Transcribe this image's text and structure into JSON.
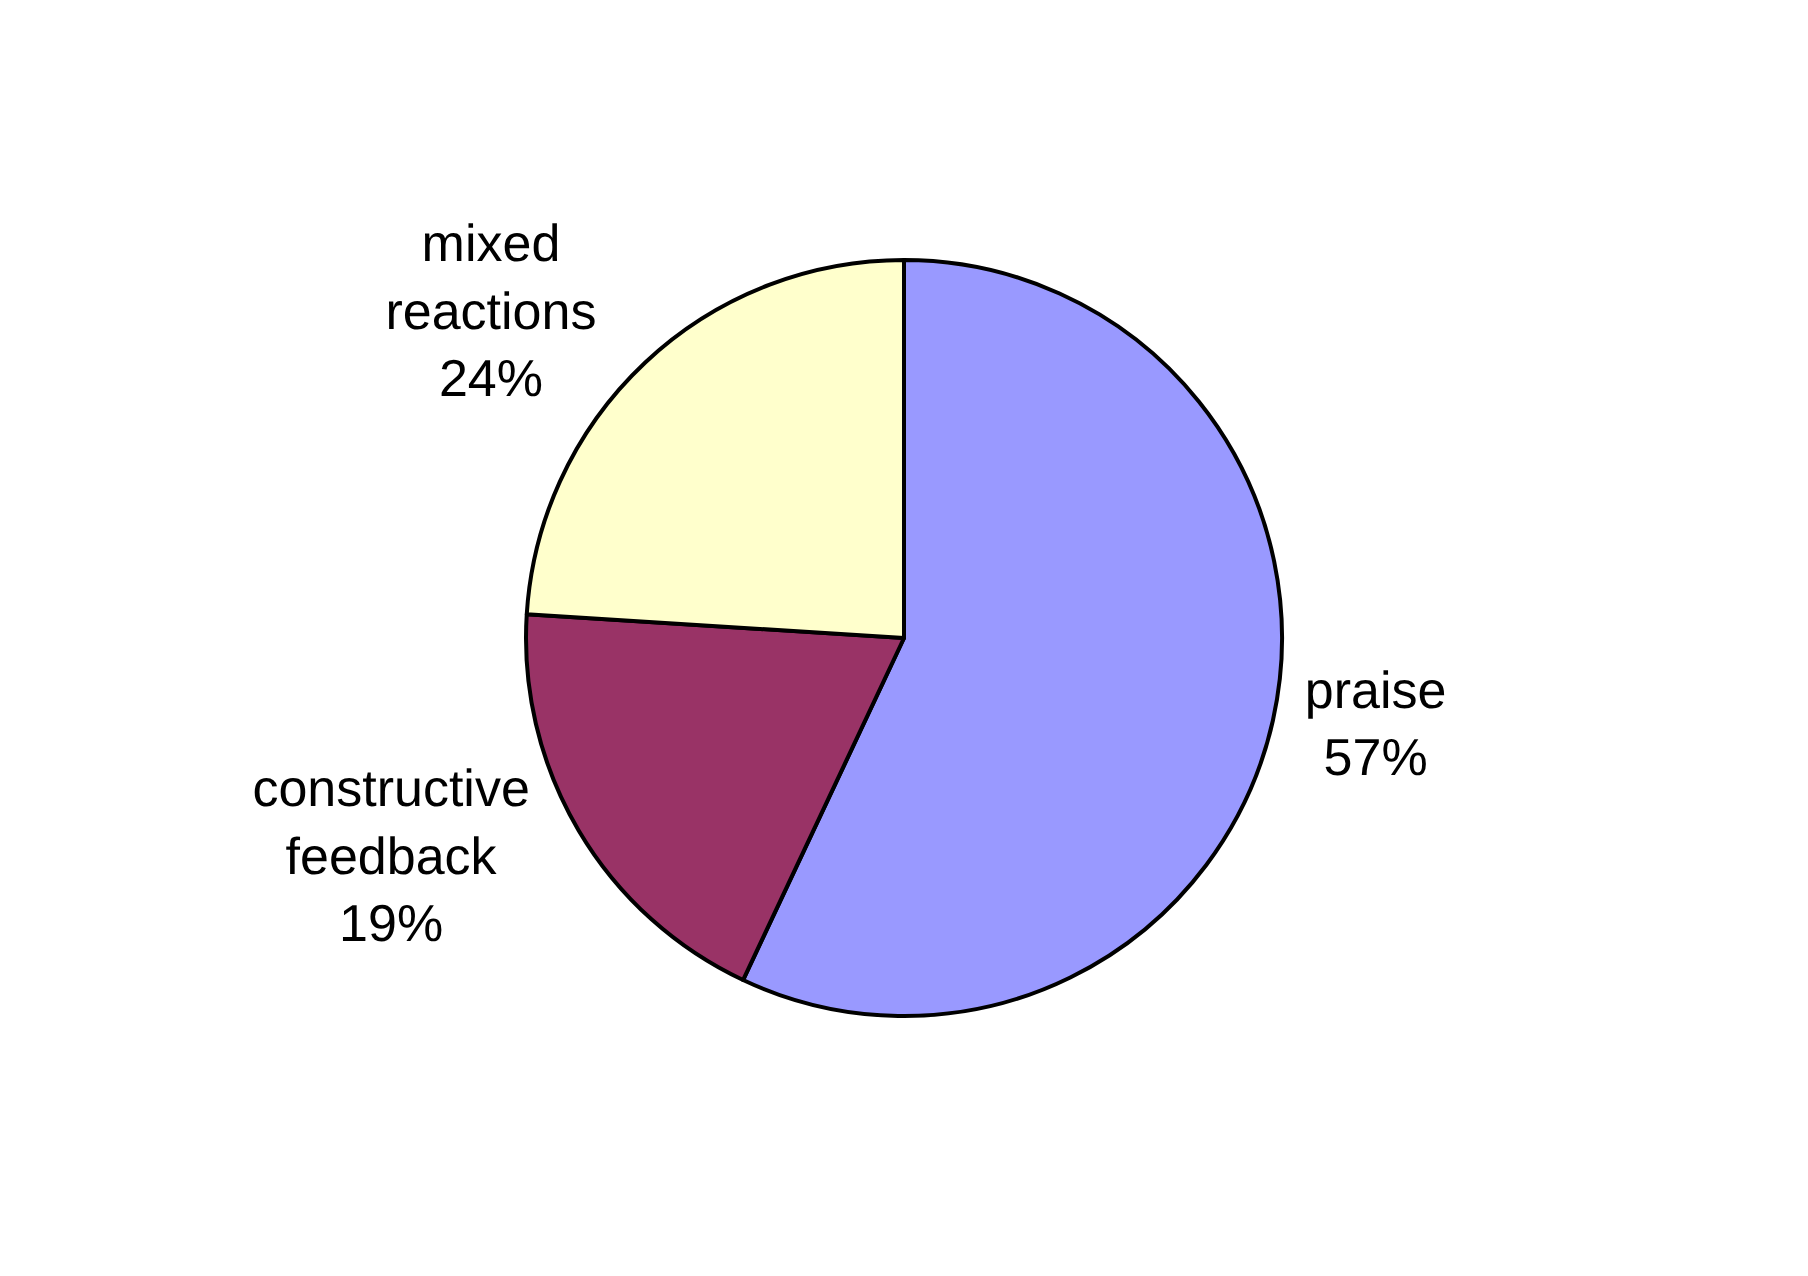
{
  "chart_data": {
    "type": "pie",
    "categories": [
      "praise",
      "constructive feedback",
      "mixed reactions"
    ],
    "values": [
      57,
      19,
      24
    ],
    "colors": [
      "#9999ff",
      "#993366",
      "#ffffcc"
    ],
    "value_labels": [
      "57%",
      "19%",
      "24%"
    ],
    "legend": false
  }
}
